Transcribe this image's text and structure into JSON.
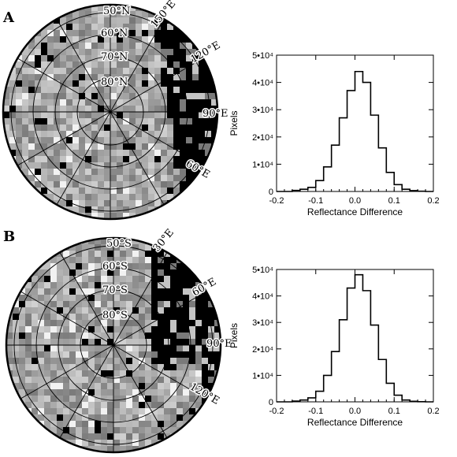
{
  "panels": [
    {
      "label": "A",
      "map": {
        "lat_labels": [
          "50°N",
          "60°N",
          "70°N",
          "80°N"
        ],
        "lon_labels": [
          "150°E",
          "120°E",
          "90°E",
          "60°E"
        ],
        "dark_side": "right"
      },
      "chart_data": {
        "type": "histogram",
        "xlabel": "Reflectance Difference",
        "ylabel": "Pixels",
        "xlim": [
          -0.2,
          0.2
        ],
        "ylim": [
          0,
          50000
        ],
        "x_ticks": [
          "-0.2",
          "-0.1",
          "0.0",
          "0.1",
          "0.2"
        ],
        "y_ticks": [
          "0",
          "1•10⁴",
          "2•10⁴",
          "3•10⁴",
          "4•10⁴",
          "5•10⁴"
        ],
        "bins": [
          -0.2,
          -0.18,
          -0.16,
          -0.14,
          -0.12,
          -0.1,
          -0.08,
          -0.06,
          -0.04,
          -0.02,
          0.0,
          0.02,
          0.04,
          0.06,
          0.08,
          0.1,
          0.12,
          0.14,
          0.16,
          0.18,
          0.2
        ],
        "counts": [
          0,
          0,
          400,
          800,
          1500,
          4000,
          9000,
          17000,
          27000,
          37000,
          44000,
          40000,
          28000,
          16000,
          7000,
          2500,
          800,
          300,
          100,
          0
        ]
      }
    },
    {
      "label": "B",
      "map": {
        "lat_labels": [
          "50°S",
          "60°S",
          "70°S",
          "80°S"
        ],
        "lon_labels": [
          "30°E",
          "60°E",
          "90°E",
          "120°E"
        ],
        "dark_side": "upper-right"
      },
      "chart_data": {
        "type": "histogram",
        "xlabel": "Reflectance Difference",
        "ylabel": "Pixels",
        "xlim": [
          -0.2,
          0.2
        ],
        "ylim": [
          0,
          50000
        ],
        "x_ticks": [
          "-0.2",
          "-0.1",
          "0.0",
          "0.1",
          "0.2"
        ],
        "y_ticks": [
          "0",
          "1•10⁴",
          "2•10⁴",
          "3•10⁴",
          "4•10⁴",
          "5•10⁴"
        ],
        "bins": [
          -0.2,
          -0.18,
          -0.16,
          -0.14,
          -0.12,
          -0.1,
          -0.08,
          -0.06,
          -0.04,
          -0.02,
          0.0,
          0.02,
          0.04,
          0.06,
          0.08,
          0.1,
          0.12,
          0.14,
          0.16,
          0.18,
          0.2
        ],
        "counts": [
          0,
          0,
          300,
          700,
          1500,
          4000,
          10000,
          19000,
          31000,
          43000,
          48000,
          42000,
          29000,
          16000,
          7000,
          2500,
          700,
          200,
          50,
          0
        ]
      }
    }
  ]
}
